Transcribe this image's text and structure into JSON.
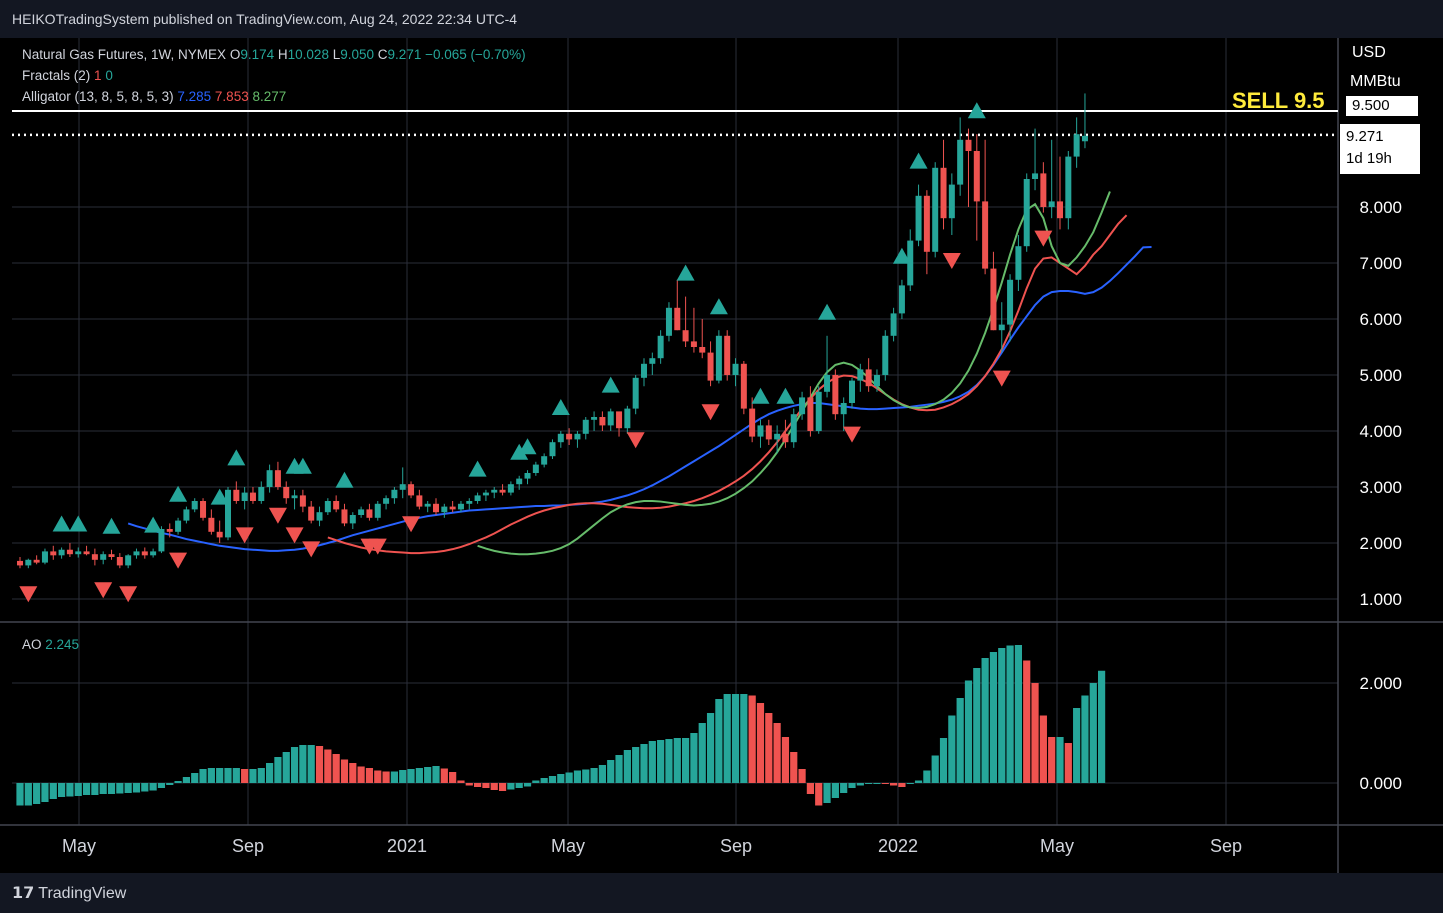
{
  "header": {
    "attribution": "HEIKOTradingSystem published on TradingView.com, Aug 24, 2022 22:34 UTC-4"
  },
  "legend": {
    "symbol": "Natural Gas Futures, 1W, NYMEX",
    "o_label": "O",
    "o": "9.174",
    "h_label": "H",
    "h": "10.028",
    "l_label": "L",
    "l": "9.050",
    "c_label": "C",
    "c": "9.271",
    "change": "−0.065 (−0.70%)",
    "fractals_label": "Fractals (2)",
    "fractals_a": "1",
    "fractals_b": "0",
    "alligator_label": "Alligator (13, 8, 5, 8, 5, 3)",
    "alligator_jaw": "7.285",
    "alligator_teeth": "7.853",
    "alligator_lips": "8.277",
    "ao_label": "AO",
    "ao_value": "2.245"
  },
  "price_axis": {
    "currency": "USD",
    "unit": "MMBtu",
    "level_label": "9.500",
    "last_price": "9.271",
    "countdown": "1d 19h"
  },
  "annotation": {
    "text": "SELL 9.5"
  },
  "footer": {
    "brand": "TradingView"
  },
  "colors": {
    "up": "#26a69a",
    "down": "#ef5350",
    "jaw": "#2962ff",
    "teeth": "#ef5350",
    "lips": "#66bb6a",
    "grid": "#2a2e39",
    "annotation": "#ffeb3b",
    "background": "#000000"
  },
  "chart_data": [
    {
      "type": "candlestick",
      "title": "Natural Gas Futures, 1W, NYMEX",
      "x_ticks": [
        "May",
        "Sep",
        "2021",
        "May",
        "Sep",
        "2022",
        "May",
        "Sep"
      ],
      "y_ticks": [
        "1.000",
        "2.000",
        "3.000",
        "4.000",
        "5.000",
        "6.000",
        "7.000",
        "8.000",
        "9.500"
      ],
      "ylim": [
        0.6,
        10.6
      ],
      "horizontal_lines": [
        9.5,
        9.271
      ],
      "grid": true,
      "candles": [
        [
          1.68,
          1.75,
          1.55,
          1.6
        ],
        [
          1.6,
          1.72,
          1.55,
          1.7
        ],
        [
          1.7,
          1.78,
          1.62,
          1.65
        ],
        [
          1.65,
          1.9,
          1.62,
          1.85
        ],
        [
          1.85,
          1.95,
          1.7,
          1.78
        ],
        [
          1.78,
          1.92,
          1.72,
          1.88
        ],
        [
          1.88,
          2.0,
          1.75,
          1.8
        ],
        [
          1.8,
          1.92,
          1.74,
          1.85
        ],
        [
          1.85,
          1.95,
          1.78,
          1.8
        ],
        [
          1.8,
          1.9,
          1.6,
          1.7
        ],
        [
          1.7,
          1.85,
          1.62,
          1.8
        ],
        [
          1.8,
          1.88,
          1.7,
          1.75
        ],
        [
          1.75,
          1.82,
          1.55,
          1.6
        ],
        [
          1.6,
          1.8,
          1.55,
          1.78
        ],
        [
          1.78,
          1.9,
          1.72,
          1.85
        ],
        [
          1.85,
          1.92,
          1.72,
          1.78
        ],
        [
          1.78,
          1.9,
          1.74,
          1.85
        ],
        [
          1.85,
          2.3,
          1.82,
          2.25
        ],
        [
          2.25,
          2.35,
          2.1,
          2.2
        ],
        [
          2.2,
          2.45,
          2.15,
          2.4
        ],
        [
          2.4,
          2.65,
          2.35,
          2.6
        ],
        [
          2.6,
          2.8,
          2.55,
          2.75
        ],
        [
          2.75,
          2.8,
          2.4,
          2.45
        ],
        [
          2.45,
          2.6,
          2.15,
          2.2
        ],
        [
          2.2,
          2.4,
          2.0,
          2.1
        ],
        [
          2.1,
          3.0,
          2.05,
          2.95
        ],
        [
          2.95,
          3.1,
          2.7,
          2.75
        ],
        [
          2.75,
          3.0,
          2.6,
          2.9
        ],
        [
          2.9,
          3.0,
          2.7,
          2.75
        ],
        [
          2.75,
          3.1,
          2.7,
          3.0
        ],
        [
          3.0,
          3.4,
          2.9,
          3.3
        ],
        [
          3.3,
          3.45,
          2.95,
          3.0
        ],
        [
          3.0,
          3.1,
          2.7,
          2.8
        ],
        [
          2.8,
          2.95,
          2.6,
          2.85
        ],
        [
          2.85,
          2.95,
          2.55,
          2.65
        ],
        [
          2.65,
          2.75,
          2.35,
          2.4
        ],
        [
          2.4,
          2.65,
          2.3,
          2.55
        ],
        [
          2.55,
          2.8,
          2.5,
          2.75
        ],
        [
          2.75,
          2.85,
          2.55,
          2.6
        ],
        [
          2.6,
          2.7,
          2.3,
          2.35
        ],
        [
          2.35,
          2.55,
          2.25,
          2.5
        ],
        [
          2.5,
          2.65,
          2.45,
          2.6
        ],
        [
          2.6,
          2.7,
          2.4,
          2.45
        ],
        [
          2.45,
          2.75,
          2.4,
          2.7
        ],
        [
          2.7,
          2.85,
          2.6,
          2.8
        ],
        [
          2.8,
          3.0,
          2.7,
          2.95
        ],
        [
          2.95,
          3.35,
          2.8,
          3.05
        ],
        [
          3.05,
          3.1,
          2.8,
          2.85
        ],
        [
          2.85,
          2.95,
          2.6,
          2.65
        ],
        [
          2.65,
          2.75,
          2.55,
          2.7
        ],
        [
          2.7,
          2.8,
          2.5,
          2.55
        ],
        [
          2.55,
          2.7,
          2.45,
          2.65
        ],
        [
          2.65,
          2.75,
          2.55,
          2.6
        ],
        [
          2.6,
          2.75,
          2.55,
          2.7
        ],
        [
          2.7,
          2.8,
          2.6,
          2.75
        ],
        [
          2.75,
          2.9,
          2.7,
          2.85
        ],
        [
          2.85,
          2.95,
          2.75,
          2.9
        ],
        [
          2.9,
          3.0,
          2.8,
          2.95
        ],
        [
          2.95,
          3.05,
          2.85,
          2.9
        ],
        [
          2.9,
          3.1,
          2.85,
          3.05
        ],
        [
          3.05,
          3.2,
          2.95,
          3.15
        ],
        [
          3.15,
          3.3,
          3.05,
          3.25
        ],
        [
          3.25,
          3.45,
          3.2,
          3.4
        ],
        [
          3.4,
          3.6,
          3.35,
          3.55
        ],
        [
          3.55,
          3.85,
          3.5,
          3.8
        ],
        [
          3.8,
          4.0,
          3.7,
          3.95
        ],
        [
          3.95,
          4.05,
          3.75,
          3.85
        ],
        [
          3.85,
          4.0,
          3.7,
          3.95
        ],
        [
          3.95,
          4.25,
          3.85,
          4.2
        ],
        [
          4.2,
          4.35,
          4.0,
          4.25
        ],
        [
          4.25,
          4.35,
          4.0,
          4.1
        ],
        [
          4.1,
          4.4,
          4.0,
          4.35
        ],
        [
          4.35,
          4.3,
          3.9,
          4.05
        ],
        [
          4.05,
          4.45,
          3.95,
          4.4
        ],
        [
          4.4,
          5.0,
          4.3,
          4.95
        ],
        [
          4.95,
          5.3,
          4.8,
          5.2
        ],
        [
          5.2,
          5.4,
          5.0,
          5.3
        ],
        [
          5.3,
          5.8,
          5.2,
          5.7
        ],
        [
          5.7,
          6.3,
          5.6,
          6.2
        ],
        [
          6.2,
          6.7,
          5.8,
          5.8
        ],
        [
          5.8,
          6.4,
          5.5,
          5.6
        ],
        [
          5.6,
          6.2,
          5.4,
          5.5
        ],
        [
          5.5,
          6.0,
          5.3,
          5.4
        ],
        [
          5.4,
          5.6,
          4.8,
          4.9
        ],
        [
          4.9,
          5.8,
          4.85,
          5.7
        ],
        [
          5.7,
          5.8,
          4.9,
          5.0
        ],
        [
          5.0,
          5.3,
          4.8,
          5.2
        ],
        [
          5.2,
          5.25,
          4.3,
          4.4
        ],
        [
          4.4,
          4.6,
          3.8,
          3.9
        ],
        [
          3.9,
          4.2,
          3.7,
          4.1
        ],
        [
          4.1,
          4.2,
          3.75,
          3.85
        ],
        [
          3.85,
          4.1,
          3.6,
          3.95
        ],
        [
          3.95,
          4.2,
          3.7,
          3.8
        ],
        [
          3.8,
          4.4,
          3.7,
          4.3
        ],
        [
          4.3,
          4.7,
          4.2,
          4.6
        ],
        [
          4.6,
          4.8,
          3.9,
          4.0
        ],
        [
          4.0,
          4.8,
          3.95,
          4.7
        ],
        [
          4.7,
          5.7,
          4.6,
          5.0
        ],
        [
          5.0,
          5.1,
          4.2,
          4.3
        ],
        [
          4.3,
          4.6,
          4.0,
          4.5
        ],
        [
          4.5,
          4.95,
          4.4,
          4.9
        ],
        [
          4.9,
          5.2,
          4.7,
          5.1
        ],
        [
          5.1,
          5.3,
          4.7,
          4.8
        ],
        [
          4.8,
          5.1,
          4.7,
          5.0
        ],
        [
          5.0,
          5.8,
          4.9,
          5.7
        ],
        [
          5.7,
          6.2,
          5.6,
          6.1
        ],
        [
          6.1,
          6.7,
          6.0,
          6.6
        ],
        [
          6.6,
          7.6,
          6.5,
          7.4
        ],
        [
          7.4,
          8.4,
          7.3,
          8.2
        ],
        [
          8.2,
          8.3,
          6.8,
          7.2
        ],
        [
          7.2,
          8.8,
          7.1,
          8.7
        ],
        [
          8.7,
          9.2,
          7.6,
          7.8
        ],
        [
          7.8,
          8.6,
          7.5,
          8.4
        ],
        [
          8.4,
          9.6,
          8.2,
          9.2
        ],
        [
          9.2,
          9.4,
          8.0,
          9.0
        ],
        [
          9.0,
          9.3,
          7.4,
          8.1
        ],
        [
          8.1,
          9.2,
          6.8,
          6.9
        ],
        [
          6.9,
          7.2,
          5.8,
          5.8
        ],
        [
          5.8,
          6.3,
          5.4,
          5.9
        ],
        [
          5.9,
          6.8,
          5.6,
          6.7
        ],
        [
          6.7,
          7.5,
          6.5,
          7.3
        ],
        [
          7.3,
          8.6,
          7.2,
          8.5
        ],
        [
          8.5,
          9.4,
          8.3,
          8.6
        ],
        [
          8.6,
          8.8,
          7.9,
          8.0
        ],
        [
          8.0,
          9.2,
          7.8,
          8.1
        ],
        [
          8.1,
          8.9,
          7.6,
          7.8
        ],
        [
          7.8,
          9.0,
          7.6,
          8.9
        ],
        [
          8.9,
          9.6,
          8.7,
          9.3
        ],
        [
          9.174,
          10.028,
          9.05,
          9.271
        ]
      ],
      "fractal_up_weeks": [
        5,
        7,
        11,
        16,
        19,
        24,
        26,
        33,
        34,
        39,
        55,
        60,
        61,
        65,
        71,
        80,
        84,
        89,
        92,
        97,
        106,
        108,
        115
      ],
      "fractal_down_weeks": [
        1,
        10,
        13,
        19,
        27,
        31,
        33,
        35,
        42,
        43,
        47,
        74,
        83,
        100,
        112,
        118,
        123
      ],
      "alligator": {
        "jaw": [
          2.35,
          2.3,
          2.26,
          2.22,
          2.18,
          2.15,
          2.11,
          2.07,
          2.04,
          2.01,
          1.98,
          1.95,
          1.93,
          1.91,
          1.89,
          1.88,
          1.87,
          1.86,
          1.86,
          1.87,
          1.88,
          1.9,
          1.93,
          1.96,
          2.0,
          2.04,
          2.09,
          2.14,
          2.18,
          2.22,
          2.26,
          2.3,
          2.34,
          2.38,
          2.42,
          2.45,
          2.48,
          2.5,
          2.52,
          2.54,
          2.56,
          2.58,
          2.59,
          2.6,
          2.61,
          2.62,
          2.63,
          2.64,
          2.65,
          2.66,
          2.66,
          2.67,
          2.67,
          2.68,
          2.69,
          2.7,
          2.72,
          2.74,
          2.77,
          2.81,
          2.85,
          2.9,
          2.96,
          3.03,
          3.11,
          3.19,
          3.28,
          3.37,
          3.46,
          3.55,
          3.64,
          3.73,
          3.83,
          3.93,
          4.03,
          4.13,
          4.22,
          4.3,
          4.36,
          4.41,
          4.45,
          4.48,
          4.5,
          4.5,
          4.48,
          4.46,
          4.44,
          4.42,
          4.4,
          4.39,
          4.39,
          4.4,
          4.41,
          4.42,
          4.43,
          4.45,
          4.47,
          4.49,
          4.52,
          4.56,
          4.62,
          4.7,
          4.82,
          4.98,
          5.18,
          5.4,
          5.63,
          5.85,
          6.05,
          6.25,
          6.4,
          6.48,
          6.5,
          6.5,
          6.48,
          6.45,
          6.48,
          6.56,
          6.68,
          6.82,
          6.97,
          7.12,
          7.28,
          7.285
        ],
        "teeth": [
          2.1,
          2.05,
          2.0,
          1.96,
          1.92,
          1.89,
          1.87,
          1.85,
          1.84,
          1.83,
          1.82,
          1.82,
          1.83,
          1.84,
          1.86,
          1.89,
          1.93,
          1.98,
          2.04,
          2.1,
          2.17,
          2.25,
          2.33,
          2.4,
          2.47,
          2.53,
          2.58,
          2.62,
          2.65,
          2.68,
          2.7,
          2.71,
          2.71,
          2.7,
          2.68,
          2.66,
          2.64,
          2.63,
          2.62,
          2.62,
          2.63,
          2.65,
          2.68,
          2.71,
          2.75,
          2.8,
          2.86,
          2.93,
          3.01,
          3.1,
          3.2,
          3.32,
          3.46,
          3.62,
          3.8,
          4.0,
          4.2,
          4.4,
          4.58,
          4.74,
          4.86,
          4.95,
          4.99,
          4.98,
          4.93,
          4.86,
          4.76,
          4.66,
          4.56,
          4.48,
          4.42,
          4.38,
          4.37,
          4.38,
          4.42,
          4.48,
          4.56,
          4.66,
          4.8,
          4.98,
          5.2,
          5.46,
          5.78,
          6.15,
          6.55,
          6.9,
          7.08,
          7.1,
          7.0,
          6.9,
          6.8,
          6.95,
          7.15,
          7.3,
          7.5,
          7.7,
          7.853
        ],
        "lips": [
          1.95,
          1.9,
          1.86,
          1.83,
          1.81,
          1.8,
          1.8,
          1.81,
          1.83,
          1.86,
          1.91,
          1.98,
          2.08,
          2.2,
          2.32,
          2.44,
          2.55,
          2.63,
          2.69,
          2.73,
          2.75,
          2.75,
          2.74,
          2.72,
          2.7,
          2.68,
          2.67,
          2.68,
          2.7,
          2.74,
          2.8,
          2.88,
          2.98,
          3.1,
          3.25,
          3.42,
          3.62,
          3.85,
          4.1,
          4.35,
          4.6,
          4.85,
          5.05,
          5.18,
          5.22,
          5.18,
          5.08,
          4.95,
          4.8,
          4.66,
          4.55,
          4.47,
          4.42,
          4.41,
          4.43,
          4.48,
          4.56,
          4.68,
          4.85,
          5.08,
          5.38,
          5.75,
          6.18,
          6.65,
          7.15,
          7.6,
          7.95,
          8.05,
          7.8,
          7.3,
          7.0,
          6.95,
          7.1,
          7.3,
          7.55,
          7.9,
          8.277
        ]
      }
    },
    {
      "type": "bar",
      "title": "AO",
      "y_ticks": [
        "0.000",
        "2.000"
      ],
      "ylim": [
        -0.5,
        2.8
      ],
      "values": [
        -0.45,
        -0.45,
        -0.42,
        -0.38,
        -0.32,
        -0.28,
        -0.27,
        -0.26,
        -0.24,
        -0.24,
        -0.22,
        -0.22,
        -0.21,
        -0.2,
        -0.19,
        -0.17,
        -0.15,
        -0.1,
        -0.04,
        0.04,
        0.12,
        0.2,
        0.28,
        0.3,
        0.3,
        0.3,
        0.3,
        0.28,
        0.28,
        0.3,
        0.4,
        0.52,
        0.62,
        0.72,
        0.76,
        0.76,
        0.74,
        0.67,
        0.58,
        0.47,
        0.4,
        0.33,
        0.3,
        0.25,
        0.23,
        0.23,
        0.26,
        0.28,
        0.3,
        0.32,
        0.34,
        0.29,
        0.22,
        0.05,
        -0.05,
        -0.08,
        -0.1,
        -0.14,
        -0.16,
        -0.13,
        -0.1,
        -0.07,
        0.05,
        0.1,
        0.14,
        0.18,
        0.21,
        0.25,
        0.27,
        0.3,
        0.36,
        0.46,
        0.56,
        0.66,
        0.72,
        0.78,
        0.84,
        0.86,
        0.88,
        0.9,
        0.9,
        1.0,
        1.2,
        1.4,
        1.68,
        1.78,
        1.78,
        1.78,
        1.75,
        1.6,
        1.4,
        1.2,
        0.92,
        0.62,
        0.28,
        -0.22,
        -0.45,
        -0.4,
        -0.3,
        -0.2,
        -0.1,
        -0.05,
        -0.02,
        0.0,
        -0.02,
        -0.05,
        -0.08,
        0.0,
        0.05,
        0.25,
        0.55,
        0.9,
        1.35,
        1.7,
        2.05,
        2.3,
        2.5,
        2.62,
        2.7,
        2.75,
        2.76,
        2.45,
        2.0,
        1.35,
        0.92,
        0.92,
        0.8,
        1.5,
        1.75,
        2.0,
        2.245
      ]
    }
  ]
}
